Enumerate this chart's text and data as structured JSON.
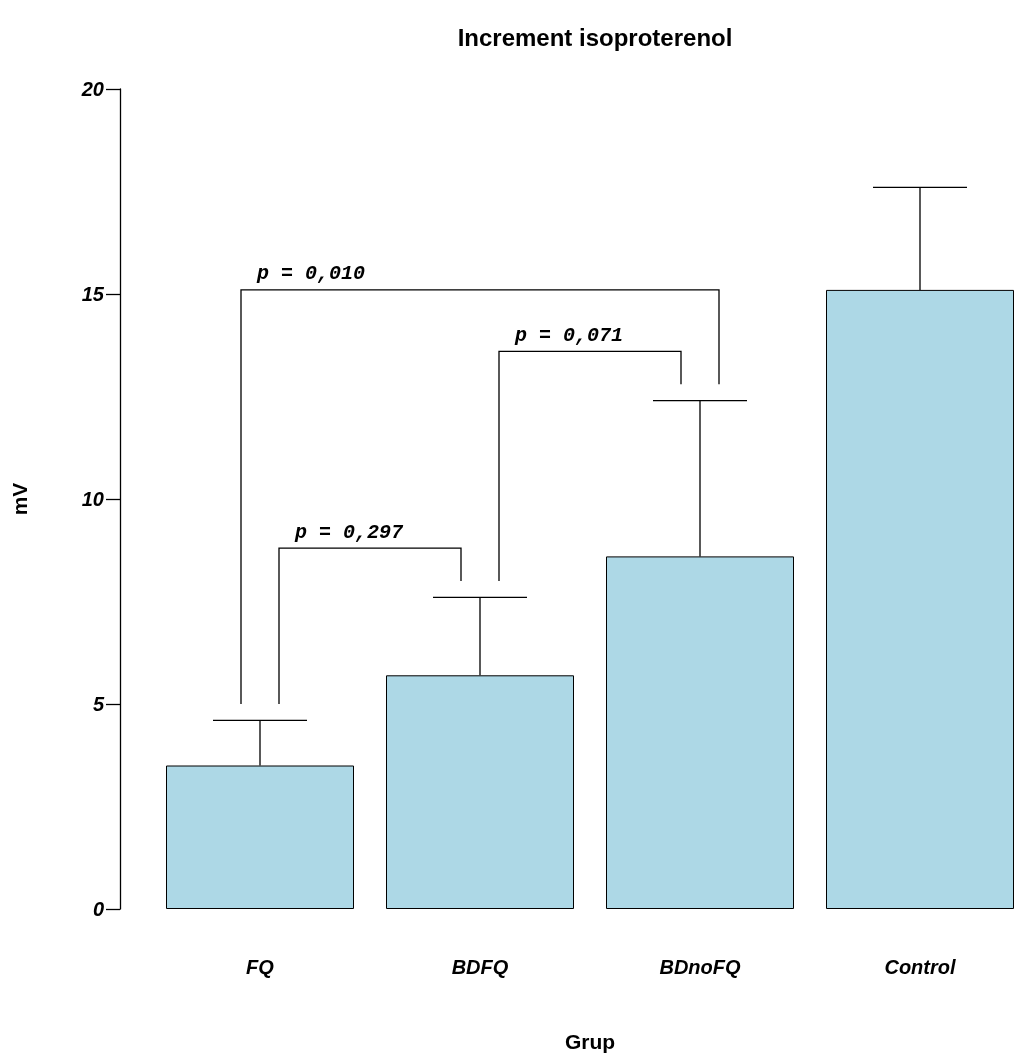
{
  "chart_data": {
    "type": "bar",
    "title": "Increment isoproterenol",
    "xlabel": "Grup",
    "ylabel": "mV",
    "categories": [
      "FQ",
      "BDFQ",
      "BDnoFQ",
      "Control"
    ],
    "values": [
      3.5,
      5.7,
      8.6,
      15.1
    ],
    "errors": [
      [
        3.5,
        4.6
      ],
      [
        5.7,
        7.6
      ],
      [
        8.6,
        12.4
      ],
      [
        15.1,
        17.6
      ]
    ],
    "color": "#add8e6",
    "ylim": [
      0,
      20
    ],
    "yticks": [
      0,
      5,
      10,
      15,
      20
    ],
    "grid": false,
    "annotations": [
      "p = 0,010",
      "p = 0,071",
      "p = 0,297"
    ]
  }
}
